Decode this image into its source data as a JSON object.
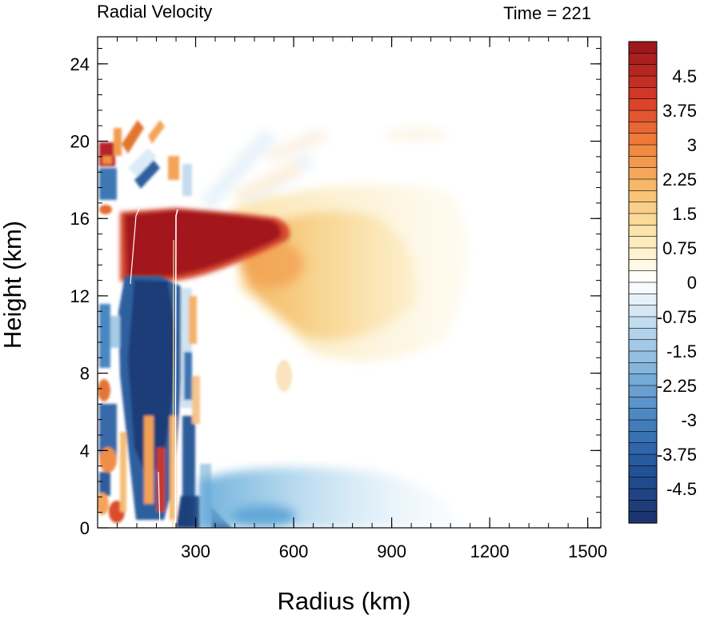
{
  "chart_data": {
    "type": "heatmap",
    "title_left": "Radial Velocity",
    "title_right": "Time = 221",
    "xlabel": "Radius (km)",
    "ylabel": "Height (km)",
    "xlim": [
      0,
      1540
    ],
    "ylim": [
      0,
      25.4
    ],
    "x_ticks": [
      300,
      600,
      900,
      1200,
      1500
    ],
    "y_ticks": [
      0,
      4,
      8,
      12,
      16,
      20,
      24
    ],
    "x_tick_labels": [
      "300",
      "600",
      "900",
      "1200",
      "1500"
    ],
    "y_tick_labels": [
      "0",
      "4",
      "8",
      "12",
      "16",
      "20",
      "24"
    ],
    "colorbar": {
      "min": -5.25,
      "max": 5.25,
      "step": 0.25,
      "labels": [
        "4.5",
        "3.75",
        "3",
        "2.25",
        "1.5",
        "0.75",
        "0",
        "-0.75",
        "-1.5",
        "-2.25",
        "-3",
        "-3.75",
        "-4.5"
      ],
      "label_values": [
        4.5,
        3.75,
        3,
        2.25,
        1.5,
        0.75,
        0,
        -0.75,
        -1.5,
        -2.25,
        -3,
        -3.75,
        -4.5
      ]
    },
    "features": [
      {
        "kind": "outflow_jet",
        "r": [
          90,
          1150
        ],
        "z": [
          11,
          17
        ],
        "peak": 5.5
      },
      {
        "kind": "inflow_column",
        "r": [
          50,
          250
        ],
        "z": [
          0,
          12.5
        ],
        "peak": -5.5
      },
      {
        "kind": "boundary_inflow",
        "r": [
          250,
          1100
        ],
        "z": [
          0,
          2.5
        ],
        "peak": -1.5
      },
      {
        "kind": "eyewall_updraft_lines",
        "r": [
          110,
          250
        ],
        "z": [
          0,
          16.5
        ]
      }
    ]
  }
}
